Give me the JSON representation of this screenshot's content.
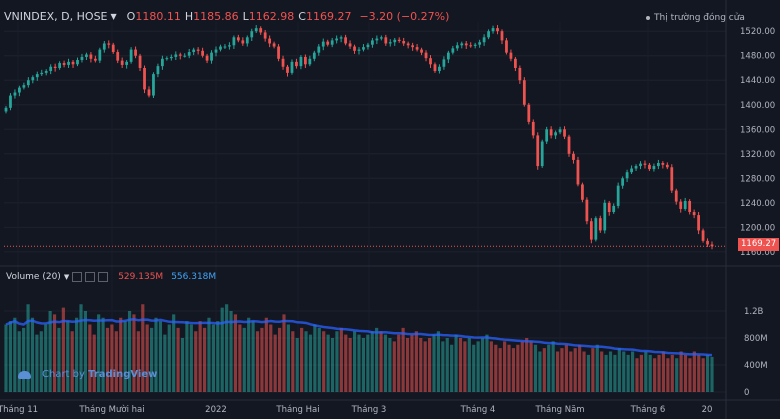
{
  "header": {
    "symbol": "VNINDEX, D, HOSE",
    "open_label": "O",
    "open": "1180.11",
    "high_label": "H",
    "high": "1185.86",
    "low_label": "L",
    "low": "1162.98",
    "close_label": "C",
    "close": "1169.27",
    "change": "−3.20 (−0.27%)"
  },
  "market_status": "Thị trường đóng cửa",
  "volume_header": {
    "label": "Volume (20)",
    "value_1": "529.135M",
    "value_2": "556.318M"
  },
  "watermark": {
    "prefix": "Chart by ",
    "brand": "TradingView"
  },
  "last_price_label": "1169.27",
  "colors": {
    "up": "#26a69a",
    "down": "#ef5350",
    "ma": "#2962ff",
    "background": "#131722"
  },
  "chart_data": {
    "type": "candlestick",
    "price_axis": {
      "ticks": [
        "1520.00",
        "1480.00",
        "1440.00",
        "1400.00",
        "1360.00",
        "1320.00",
        "1280.00",
        "1240.00",
        "1200.00",
        "1160.00"
      ],
      "ylim": [
        1150,
        1535
      ]
    },
    "volume_axis": {
      "ticks": [
        "1.2B",
        "800M",
        "400M",
        "0"
      ],
      "ylim": [
        0,
        1.6
      ]
    },
    "x_axis": {
      "labels": [
        "Tháng 11",
        "Tháng Mười hai",
        "2022",
        "Tháng Hai",
        "Tháng 3",
        "Tháng 4",
        "Tháng Năm",
        "Tháng 6",
        "20"
      ]
    },
    "last_close": 1169.27,
    "close_series": [
      1395,
      1415,
      1420,
      1428,
      1432,
      1440,
      1445,
      1450,
      1452,
      1455,
      1462,
      1460,
      1468,
      1465,
      1470,
      1466,
      1473,
      1478,
      1482,
      1475,
      1472,
      1490,
      1500,
      1498,
      1486,
      1472,
      1465,
      1470,
      1490,
      1480,
      1460,
      1425,
      1415,
      1450,
      1463,
      1475,
      1476,
      1478,
      1482,
      1480,
      1480,
      1486,
      1490,
      1488,
      1480,
      1472,
      1485,
      1490,
      1495,
      1495,
      1497,
      1510,
      1505,
      1500,
      1510,
      1520,
      1525,
      1518,
      1508,
      1500,
      1495,
      1475,
      1462,
      1452,
      1470,
      1463,
      1478,
      1466,
      1475,
      1485,
      1495,
      1503,
      1498,
      1505,
      1508,
      1510,
      1500,
      1495,
      1488,
      1490,
      1494,
      1498,
      1505,
      1508,
      1510,
      1500,
      1502,
      1506,
      1504,
      1500,
      1497,
      1494,
      1490,
      1485,
      1476,
      1466,
      1455,
      1462,
      1474,
      1485,
      1492,
      1497,
      1500,
      1497,
      1496,
      1498,
      1502,
      1510,
      1520,
      1525,
      1520,
      1505,
      1485,
      1475,
      1460,
      1440,
      1400,
      1372,
      1350,
      1300,
      1340,
      1360,
      1350,
      1355,
      1360,
      1348,
      1320,
      1310,
      1270,
      1245,
      1210,
      1180,
      1215,
      1195,
      1240,
      1225,
      1235,
      1268,
      1280,
      1290,
      1296,
      1300,
      1304,
      1302,
      1295,
      1300,
      1305,
      1302,
      1298,
      1260,
      1242,
      1230,
      1243,
      1225,
      1220,
      1195,
      1178,
      1172,
      1169.27
    ],
    "volume_series": [
      1.0,
      1.05,
      1.1,
      0.9,
      0.95,
      1.3,
      1.1,
      0.85,
      0.9,
      1.0,
      1.2,
      1.15,
      0.95,
      1.25,
      1.05,
      0.9,
      1.1,
      1.3,
      1.2,
      1.0,
      0.85,
      1.15,
      1.1,
      0.95,
      1.0,
      0.9,
      1.1,
      1.05,
      1.2,
      1.15,
      0.9,
      1.3,
      1.0,
      0.95,
      1.1,
      1.05,
      0.85,
      1.0,
      1.15,
      0.95,
      0.8,
      1.05,
      1.0,
      0.9,
      1.05,
      0.95,
      1.1,
      1.0,
      1.05,
      1.25,
      1.3,
      1.2,
      1.15,
      1.0,
      0.95,
      1.1,
      1.05,
      0.9,
      0.95,
      1.1,
      1.0,
      0.85,
      0.95,
      1.15,
      1.0,
      0.9,
      0.8,
      0.95,
      0.9,
      0.85,
      1.0,
      0.95,
      0.9,
      0.85,
      0.8,
      0.9,
      0.95,
      0.85,
      0.8,
      0.9,
      0.85,
      0.8,
      0.85,
      0.9,
      0.95,
      0.9,
      0.85,
      0.8,
      0.75,
      0.85,
      0.95,
      0.8,
      0.85,
      0.9,
      0.8,
      0.75,
      0.8,
      0.85,
      0.9,
      0.75,
      0.8,
      0.7,
      0.85,
      0.8,
      0.75,
      0.8,
      0.7,
      0.75,
      0.8,
      0.85,
      0.75,
      0.7,
      0.65,
      0.75,
      0.7,
      0.65,
      0.7,
      0.75,
      0.8,
      0.75,
      0.7,
      0.6,
      0.65,
      0.7,
      0.75,
      0.6,
      0.65,
      0.7,
      0.6,
      0.65,
      0.7,
      0.6,
      0.55,
      0.65,
      0.7,
      0.6,
      0.55,
      0.6,
      0.55,
      0.65,
      0.6,
      0.55,
      0.6,
      0.5,
      0.55,
      0.6,
      0.55,
      0.5,
      0.55,
      0.6,
      0.5,
      0.55,
      0.5,
      0.6,
      0.55,
      0.5,
      0.6,
      0.55,
      0.5,
      0.55,
      0.52
    ]
  }
}
